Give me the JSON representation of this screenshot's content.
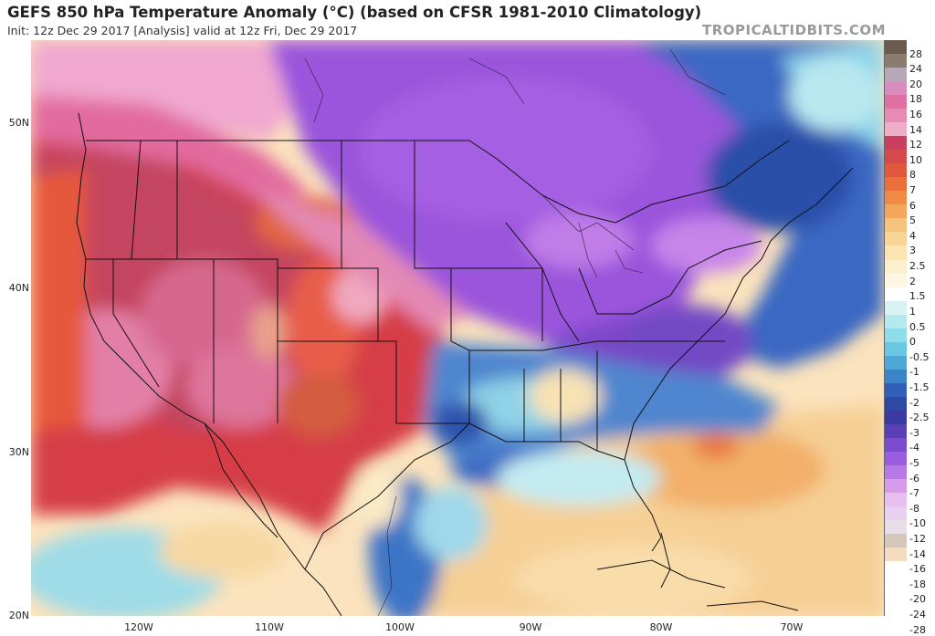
{
  "header": {
    "title": "GEFS 850 hPa Temperature Anomaly (°C) (based on CFSR 1981-2010 Climatology)",
    "subtitle": "Init: 12z Dec 29 2017   [Analysis]   valid at 12z Fri, Dec 29 2017",
    "brand": "TROPICALTIDBITS.COM"
  },
  "axes": {
    "lat_labels": [
      "50N",
      "40N",
      "30N",
      "20N"
    ],
    "lon_labels": [
      "120W",
      "110W",
      "100W",
      "90W",
      "80W",
      "70W"
    ]
  },
  "colorbar": {
    "labels": [
      "28",
      "24",
      "20",
      "18",
      "16",
      "14",
      "12",
      "10",
      "8",
      "7",
      "6",
      "5",
      "4",
      "3",
      "2.5",
      "2",
      "1.5",
      "1",
      "0.5",
      "0",
      "-0.5",
      "-1",
      "-1.5",
      "-2",
      "-2.5",
      "-3",
      "-4",
      "-5",
      "-6",
      "-7",
      "-8",
      "-10",
      "-12",
      "-14",
      "-16",
      "-18",
      "-20",
      "-24",
      "-28"
    ],
    "colors": [
      "#6b5a4e",
      "#8c7b6f",
      "#b7a8b8",
      "#d88cbf",
      "#e06fa2",
      "#e58bb4",
      "#efadc8",
      "#c8405e",
      "#d54a4a",
      "#e2583c",
      "#ec6e3a",
      "#f08a45",
      "#f4a65a",
      "#f7c27b",
      "#f8d596",
      "#fae4b2",
      "#fcefcd",
      "#fdf6e2",
      "#ffffff",
      "#d9f3f4",
      "#b4e9ef",
      "#8fdcea",
      "#6bc8e3",
      "#4fa7d8",
      "#3c84ca",
      "#315fba",
      "#2d49a3",
      "#3a3aa0",
      "#5a3fb7",
      "#7a4cd0",
      "#9a5de0",
      "#b878e6",
      "#d79be9",
      "#e8bdef",
      "#e9d0f0",
      "#e6dfe8",
      "#d5c7b9",
      "#f3dcc0"
    ]
  },
  "colors": {
    "map_background": "#fce6c4",
    "borders": "#1a1a1a",
    "brand_text": "#9a9a9a"
  }
}
